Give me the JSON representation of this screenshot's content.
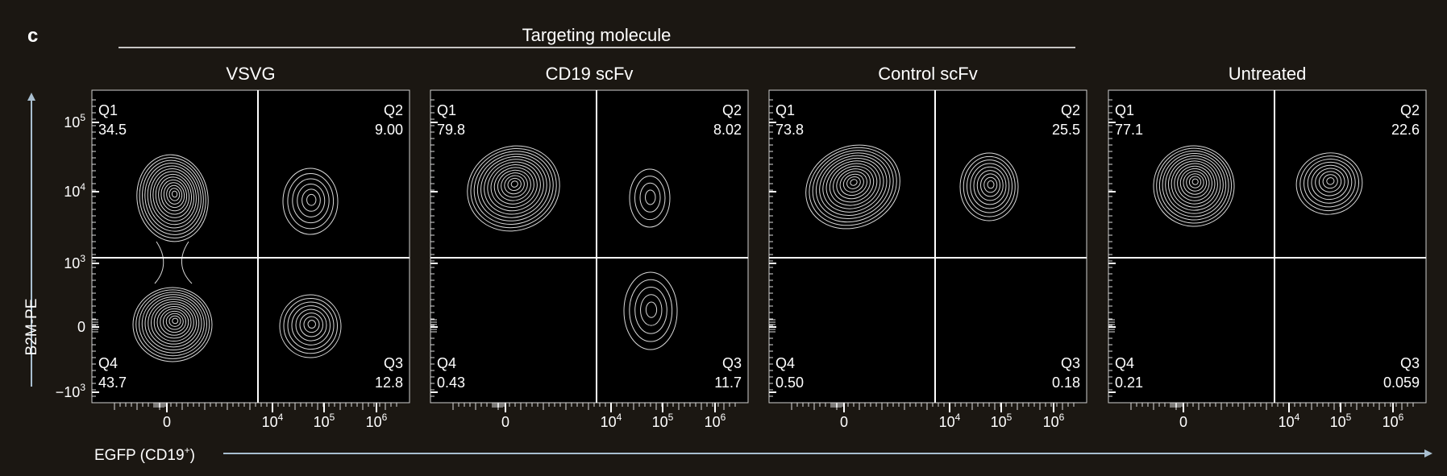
{
  "figure": {
    "panel_letter": "c",
    "header": "Targeting molecule",
    "y_axis_label": "B2M-PE",
    "x_axis_label_main": "EGFP (CD19",
    "x_axis_label_sup": "+",
    "x_axis_label_end": ")",
    "colors": {
      "background": "#1b1712",
      "plot_bg": "#000000",
      "text": "#ffffff",
      "arrow": "#a9bfd0",
      "contour": "#d9d9d9"
    }
  },
  "chart_data": [
    {
      "type": "contour",
      "title": "VSVG",
      "x_ticks": [
        "0",
        "10^4",
        "10^5",
        "10^6"
      ],
      "y_ticks": [
        "10^5",
        "10^4",
        "10^3",
        "0",
        "−10^3"
      ],
      "quadrants": [
        {
          "name": "Q1",
          "value": "34.5"
        },
        {
          "name": "Q2",
          "value": "9.00"
        },
        {
          "name": "Q3",
          "value": "12.8"
        },
        {
          "name": "Q4",
          "value": "43.7"
        }
      ]
    },
    {
      "type": "contour",
      "title": "CD19 scFv",
      "x_ticks": [
        "0",
        "10^4",
        "10^5",
        "10^6"
      ],
      "y_ticks": [
        "10^5",
        "10^4",
        "10^3",
        "0",
        "−10^3"
      ],
      "quadrants": [
        {
          "name": "Q1",
          "value": "79.8"
        },
        {
          "name": "Q2",
          "value": "8.02"
        },
        {
          "name": "Q3",
          "value": "11.7"
        },
        {
          "name": "Q4",
          "value": "0.43"
        }
      ]
    },
    {
      "type": "contour",
      "title": "Control scFv",
      "x_ticks": [
        "0",
        "10^4",
        "10^5",
        "10^6"
      ],
      "y_ticks": [
        "10^5",
        "10^4",
        "10^3",
        "0",
        "−10^3"
      ],
      "quadrants": [
        {
          "name": "Q1",
          "value": "73.8"
        },
        {
          "name": "Q2",
          "value": "25.5"
        },
        {
          "name": "Q3",
          "value": "0.18"
        },
        {
          "name": "Q4",
          "value": "0.50"
        }
      ]
    },
    {
      "type": "contour",
      "title": "Untreated",
      "x_ticks": [
        "0",
        "10^4",
        "10^5",
        "10^6"
      ],
      "y_ticks": [
        "10^5",
        "10^4",
        "10^3",
        "0",
        "−10^3"
      ],
      "quadrants": [
        {
          "name": "Q1",
          "value": "77.1"
        },
        {
          "name": "Q2",
          "value": "22.6"
        },
        {
          "name": "Q3",
          "value": "0.059"
        },
        {
          "name": "Q4",
          "value": "0.21"
        }
      ]
    }
  ]
}
